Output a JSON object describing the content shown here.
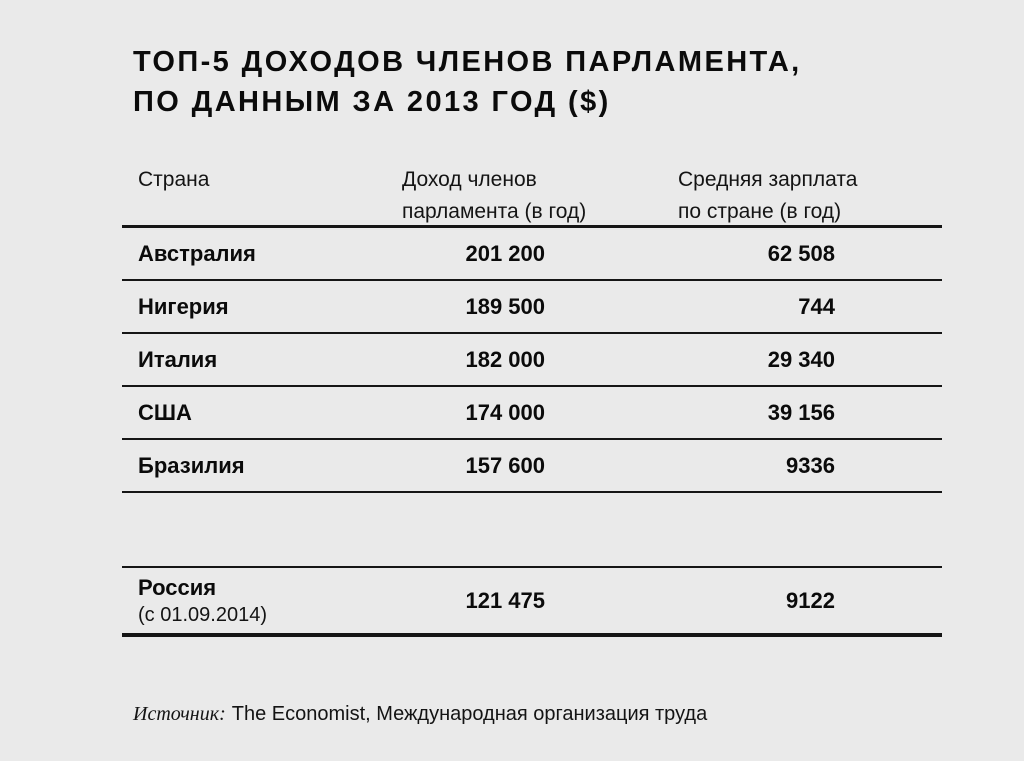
{
  "title": {
    "line1": "ТОП-5 ДОХОДОВ ЧЛЕНОВ ПАРЛАМЕНТА,",
    "line2": "ПО ДАННЫМ ЗА 2013 ГОД ($)"
  },
  "table": {
    "headers": {
      "country": "Страна",
      "income": "Доход членов\nпарламента (в год)",
      "avg_salary": "Средняя зарплата\nпо стране (в год)"
    },
    "rows": [
      {
        "country": "Австралия",
        "income": "201 200",
        "avg_salary": "62 508"
      },
      {
        "country": "Нигерия",
        "income": "189 500",
        "avg_salary": "744"
      },
      {
        "country": "Италия",
        "income": "182 000",
        "avg_salary": "29 340"
      },
      {
        "country": "США",
        "income": "174 000",
        "avg_salary": "39 156"
      },
      {
        "country": "Бразилия",
        "income": "157 600",
        "avg_salary": "9336"
      }
    ],
    "russia_row": {
      "country": "Россия",
      "note": "(с 01.09.2014)",
      "income": "121 475",
      "avg_salary": "9122"
    }
  },
  "source": {
    "label": "Источник:",
    "text": "The Economist, Международная организация труда"
  },
  "colors": {
    "background": "#eaeaea",
    "text": "#0b0b0b",
    "line": "#151515"
  },
  "chart_data": {
    "type": "table",
    "title": "ТОП-5 ДОХОДОВ ЧЛЕНОВ ПАРЛАМЕНТА, ПО ДАННЫМ ЗА 2013 ГОД ($)",
    "columns": [
      "Страна",
      "Доход членов парламента (в год)",
      "Средняя зарплата по стране (в год)"
    ],
    "rows": [
      [
        "Австралия",
        201200,
        62508
      ],
      [
        "Нигерия",
        189500,
        744
      ],
      [
        "Италия",
        182000,
        29340
      ],
      [
        "США",
        174000,
        39156
      ],
      [
        "Бразилия",
        157600,
        9336
      ],
      [
        "Россия (с 01.09.2014)",
        121475,
        9122
      ]
    ],
    "source": "The Economist, Международная организация труда"
  }
}
